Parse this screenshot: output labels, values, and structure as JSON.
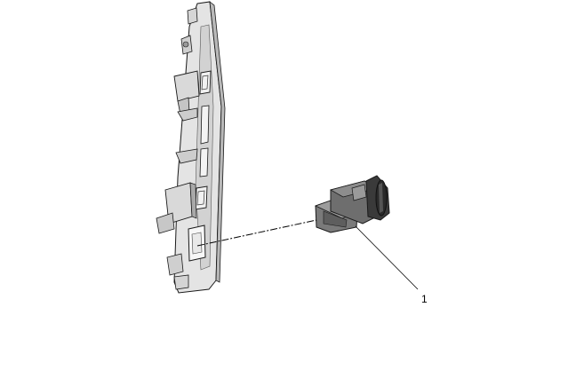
{
  "diagram": {
    "callouts": [
      {
        "number": "1"
      }
    ],
    "colors": {
      "panel_light": "#e4e4e4",
      "panel_mid": "#c9c9c9",
      "panel_dark": "#8a8a8a",
      "switch_body": "#6e6e6e",
      "switch_dark": "#2f2f2f",
      "outline": "#1a1a1a",
      "leader": "#000000"
    }
  }
}
